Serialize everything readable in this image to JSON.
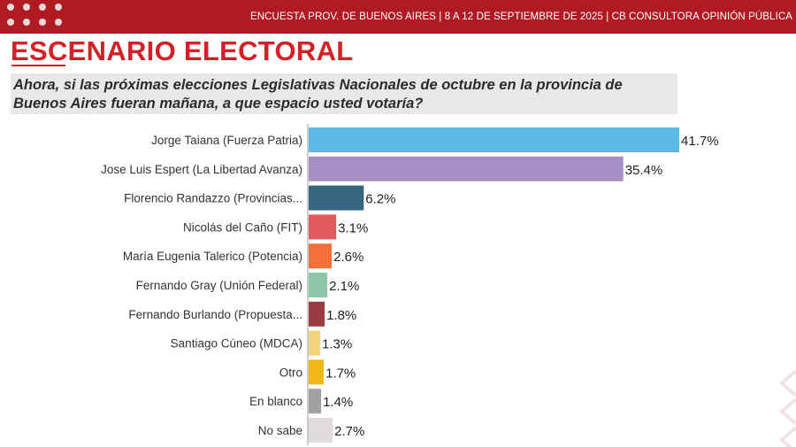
{
  "header": {
    "text": "ENCUESTA PROV. DE BUENOS AIRES | 8 A 12 DE SEPTIEMBRE DE 2025 | CB CONSULTORA OPINIÓN PÚBLICA"
  },
  "title": "ESCENARIO ELECTORAL",
  "question": "Ahora, si las próximas elecciones Legislativas Nacionales de octubre en la provincia de Buenos Aires fueran mañana, a que espacio usted votaría?",
  "colors": {
    "brand_red": "#b01a22",
    "title_red": "#d42127"
  },
  "chart_data": {
    "type": "bar",
    "orientation": "horizontal",
    "title": "ESCENARIO ELECTORAL",
    "xlabel": "",
    "ylabel": "",
    "xlim": [
      0,
      41.7
    ],
    "grid": false,
    "value_suffix": "%",
    "categories": [
      "Jorge Taiana (Fuerza Patria)",
      "Jose Luis Espert (La Libertad Avanza)",
      "Florencio Randazzo (Provincias...",
      "Nicolás del Caño (FIT)",
      "María Eugenia Talerico (Potencia)",
      "Fernando Gray (Unión Federal)",
      "Fernando Burlando (Propuesta...",
      "Santiago Cúneo (MDCA)",
      "Otro",
      "En blanco",
      "No sabe"
    ],
    "values": [
      41.7,
      35.4,
      6.2,
      3.1,
      2.6,
      2.1,
      1.8,
      1.3,
      1.7,
      1.4,
      2.7
    ],
    "value_labels": [
      "41.7%",
      "35.4%",
      "6.2%",
      "3.1%",
      "2.6%",
      "2.1%",
      "1.8%",
      "1.3%",
      "1.7%",
      "1.4%",
      "2.7%"
    ],
    "bar_colors": [
      "#5eb8e6",
      "#a78fc6",
      "#356880",
      "#e05a5e",
      "#f4703a",
      "#8cc7a8",
      "#9c3a42",
      "#f2d37a",
      "#f0b718",
      "#a3a0a3",
      "#e1dadc"
    ]
  }
}
